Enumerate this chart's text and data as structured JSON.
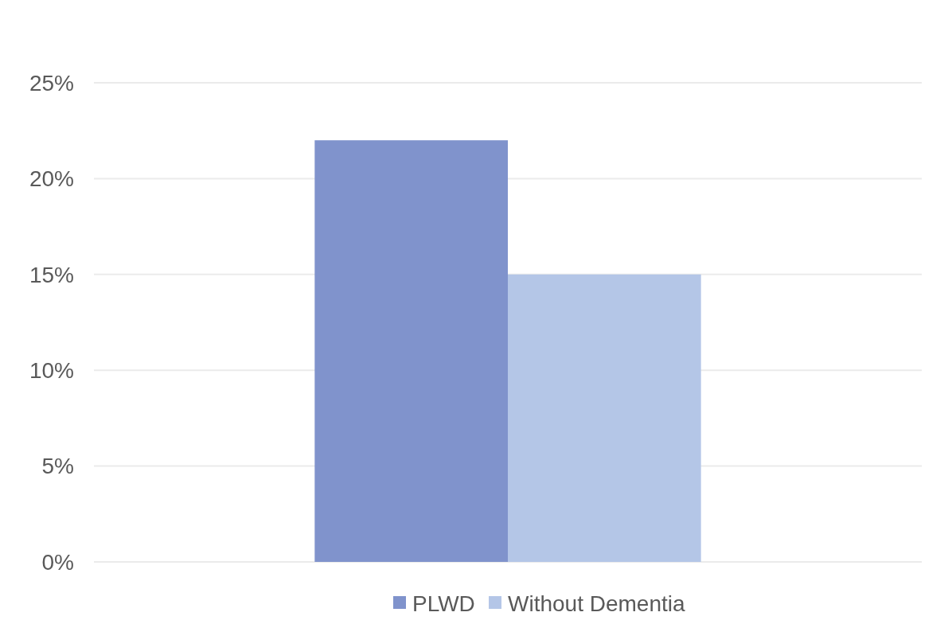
{
  "chart_data": {
    "type": "bar",
    "categories": [
      null
    ],
    "series": [
      {
        "name": "PLWD",
        "color": "#8093cc",
        "values": [
          22
        ]
      },
      {
        "name": "Without Dementia",
        "color": "#b4c6e7",
        "values": [
          15
        ]
      }
    ],
    "ylim": [
      0,
      25
    ],
    "yticks": [
      {
        "value": 0,
        "label": "0%"
      },
      {
        "value": 5,
        "label": "5%"
      },
      {
        "value": 10,
        "label": "10%"
      },
      {
        "value": 15,
        "label": "15%"
      },
      {
        "value": 20,
        "label": "20%"
      },
      {
        "value": 25,
        "label": "25%"
      }
    ],
    "grid": "y",
    "legend": "bottom"
  }
}
